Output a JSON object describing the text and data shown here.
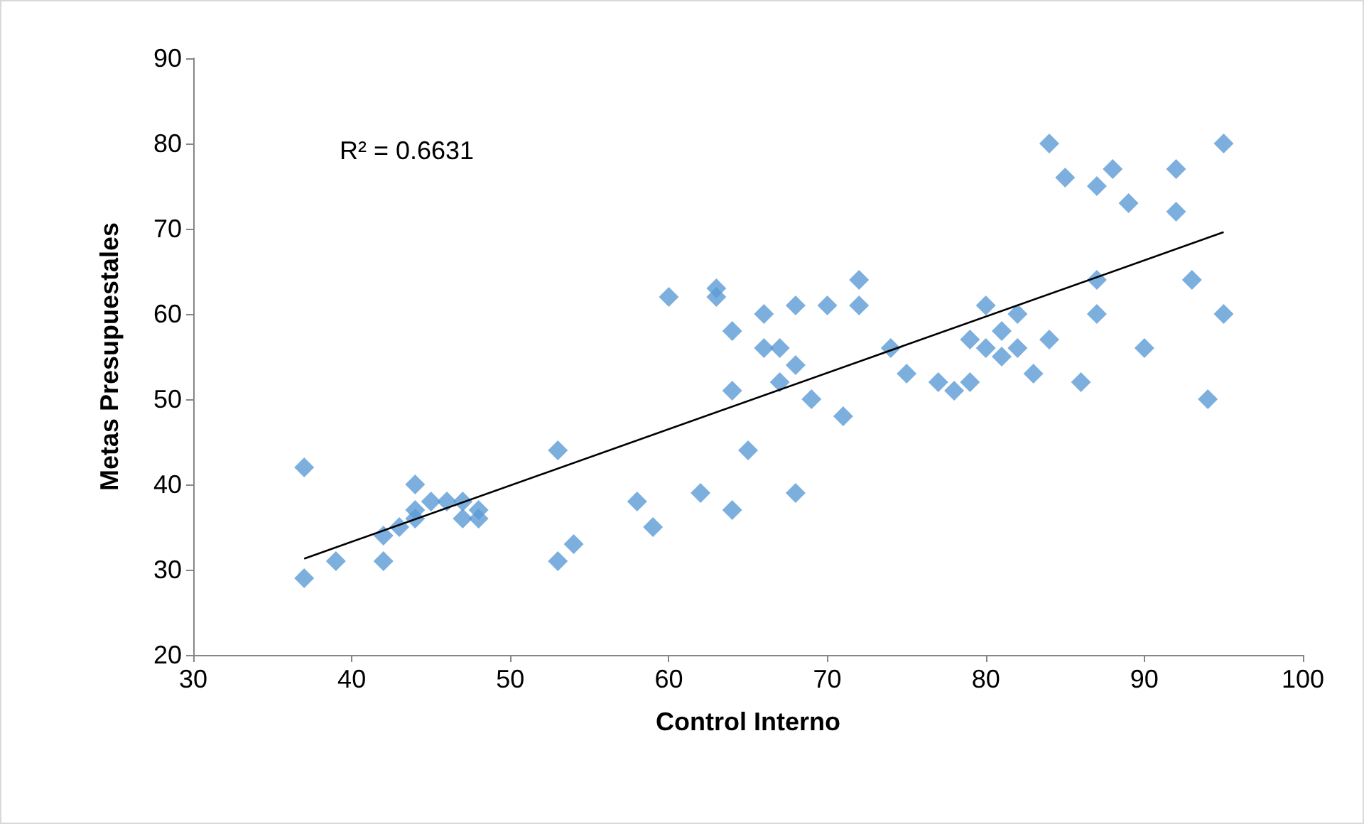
{
  "chart_data": {
    "type": "scatter",
    "xlabel": "Control Interno",
    "ylabel": "Metas Presupuestales",
    "annotations": [
      "R² = 0.6631"
    ],
    "xlim": [
      30,
      100
    ],
    "xticks": [
      30,
      40,
      50,
      60,
      70,
      80,
      90,
      100
    ],
    "ylim": [
      20,
      90
    ],
    "yticks": [
      20,
      30,
      40,
      50,
      60,
      70,
      80,
      90
    ],
    "grid": false,
    "marker": "diamond",
    "series": [
      {
        "type": "scatter",
        "color": "#5b9bd5",
        "x": [
          37,
          37,
          39,
          42,
          42,
          43,
          44,
          44,
          44,
          45,
          46,
          47,
          47,
          48,
          48,
          53,
          53,
          54,
          58,
          59,
          60,
          62,
          63,
          63,
          64,
          64,
          64,
          65,
          66,
          66,
          67,
          67,
          68,
          68,
          68,
          69,
          70,
          71,
          72,
          72,
          74,
          75,
          77,
          78,
          79,
          79,
          80,
          80,
          81,
          81,
          82,
          82,
          83,
          84,
          84,
          85,
          86,
          87,
          87,
          87,
          88,
          89,
          90,
          92,
          92,
          93,
          94,
          95,
          95
        ],
        "values": [
          42,
          29,
          31,
          34,
          31,
          35,
          40,
          37,
          36,
          38,
          38,
          38,
          36,
          37,
          36,
          44,
          31,
          33,
          38,
          35,
          62,
          39,
          63,
          62,
          58,
          51,
          37,
          44,
          60,
          56,
          56,
          52,
          61,
          54,
          39,
          50,
          61,
          48,
          64,
          61,
          56,
          53,
          52,
          51,
          57,
          52,
          61,
          56,
          58,
          55,
          60,
          56,
          53,
          80,
          57,
          76,
          52,
          75,
          64,
          60,
          77,
          73,
          56,
          77,
          72,
          64,
          50,
          80,
          60
        ]
      },
      {
        "type": "line",
        "color": "#000000",
        "marker": "none",
        "x": [
          37,
          95
        ],
        "values": [
          31.3,
          69.6
        ]
      }
    ]
  }
}
